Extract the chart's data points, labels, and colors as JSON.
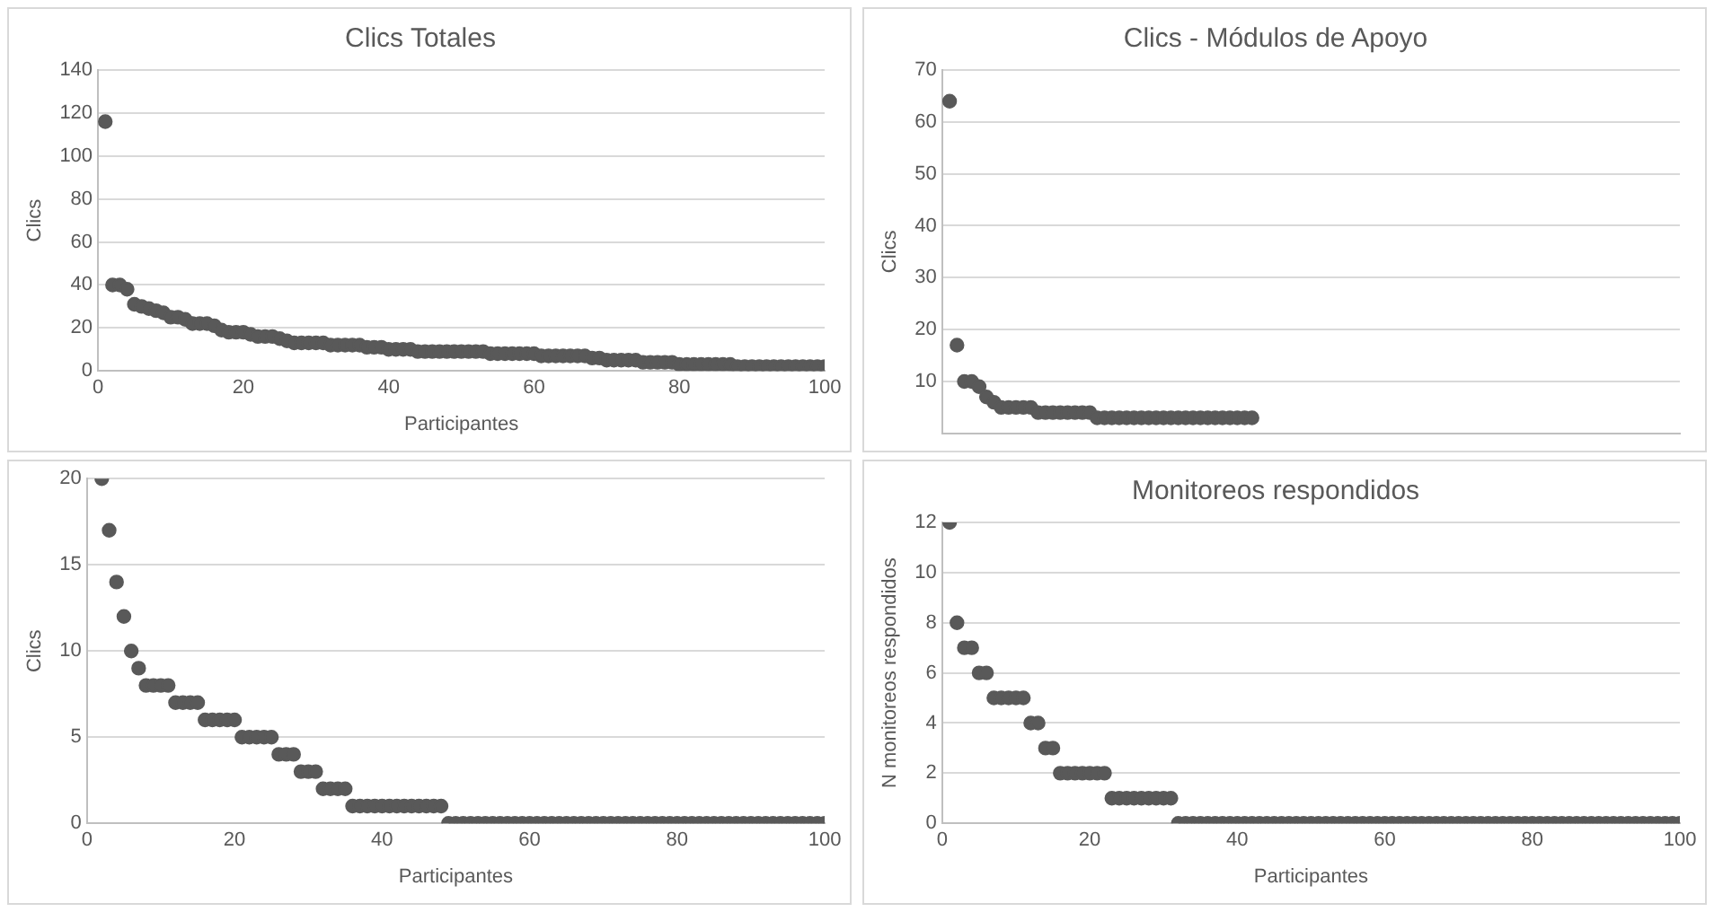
{
  "chart_data": [
    {
      "type": "scatter",
      "title": "Clics Totales",
      "xlabel": "Participantes",
      "ylabel": "Clics",
      "color": "#595959",
      "marker": "circle",
      "grid": "y",
      "xlim": [
        0,
        100
      ],
      "ylim": [
        0,
        140
      ],
      "xticks": [
        0,
        20,
        40,
        60,
        80,
        100
      ],
      "yticks": [
        0,
        20,
        40,
        60,
        80,
        100,
        120,
        140
      ],
      "x": [
        1,
        2,
        3,
        4,
        5,
        6,
        7,
        8,
        9,
        10,
        11,
        12,
        13,
        14,
        15,
        16,
        17,
        18,
        19,
        20,
        21,
        22,
        23,
        24,
        25,
        26,
        27,
        28,
        29,
        30,
        31,
        32,
        33,
        34,
        35,
        36,
        37,
        38,
        39,
        40,
        41,
        42,
        43,
        44,
        45,
        46,
        47,
        48,
        49,
        50,
        51,
        52,
        53,
        54,
        55,
        56,
        57,
        58,
        59,
        60,
        61,
        62,
        63,
        64,
        65,
        66,
        67,
        68,
        69,
        70,
        71,
        72,
        73,
        74,
        75,
        76,
        77,
        78,
        79,
        80,
        81,
        82,
        83,
        84,
        85,
        86,
        87,
        88,
        89,
        90,
        91,
        92,
        93,
        94,
        95,
        96,
        97,
        98,
        99,
        100
      ],
      "values": [
        116,
        40,
        40,
        38,
        31,
        30,
        29,
        28,
        27,
        25,
        25,
        24,
        22,
        22,
        22,
        21,
        19,
        18,
        18,
        18,
        17,
        16,
        16,
        16,
        15,
        14,
        13,
        13,
        13,
        13,
        13,
        12,
        12,
        12,
        12,
        12,
        11,
        11,
        11,
        10,
        10,
        10,
        10,
        9,
        9,
        9,
        9,
        9,
        9,
        9,
        9,
        9,
        9,
        8,
        8,
        8,
        8,
        8,
        8,
        8,
        7,
        7,
        7,
        7,
        7,
        7,
        7,
        6,
        6,
        5,
        5,
        5,
        5,
        5,
        4,
        4,
        4,
        4,
        4,
        3,
        3,
        3,
        3,
        3,
        3,
        3,
        3,
        2,
        2,
        2,
        2,
        2,
        2,
        2,
        2,
        2,
        2,
        2,
        2,
        2
      ]
    },
    {
      "type": "scatter",
      "title": "Clics - Módulos de Apoyo",
      "ylabel": "Clics",
      "color": "#595959",
      "marker": "circle",
      "grid": "y",
      "tick_labels": "y",
      "xlim": [
        0,
        100
      ],
      "ylim": [
        0,
        70
      ],
      "yticks": [
        10,
        20,
        30,
        40,
        50,
        60,
        70
      ],
      "x": [
        1,
        2,
        3,
        4,
        5,
        6,
        7,
        8,
        9,
        10,
        11,
        12,
        13,
        14,
        15,
        16,
        17,
        18,
        19,
        20,
        21,
        22,
        23,
        24,
        25,
        26,
        27,
        28,
        29,
        30,
        31,
        32,
        33,
        34,
        35,
        36,
        37,
        38,
        39,
        40,
        41,
        42
      ],
      "values": [
        64,
        17,
        10,
        10,
        9,
        7,
        6,
        5,
        5,
        5,
        5,
        5,
        4,
        4,
        4,
        4,
        4,
        4,
        4,
        4,
        3,
        3,
        3,
        3,
        3,
        3,
        3,
        3,
        3,
        3,
        3,
        3,
        3,
        3,
        3,
        3,
        3,
        3,
        3,
        3,
        3,
        3
      ]
    },
    {
      "type": "scatter",
      "xlabel": "Participantes",
      "ylabel": "Clics",
      "color": "#595959",
      "marker": "circle",
      "grid": "y",
      "xlim": [
        0,
        100
      ],
      "ylim": [
        0,
        20
      ],
      "xticks": [
        0,
        20,
        40,
        60,
        80,
        100
      ],
      "yticks": [
        0,
        5,
        10,
        15,
        20
      ],
      "x": [
        2,
        3,
        4,
        5,
        6,
        7,
        8,
        9,
        10,
        11,
        12,
        13,
        14,
        15,
        16,
        17,
        18,
        19,
        20,
        21,
        22,
        23,
        24,
        25,
        26,
        27,
        28,
        29,
        30,
        31,
        32,
        33,
        34,
        35,
        36,
        37,
        38,
        39,
        40,
        41,
        42,
        43,
        44,
        45,
        46,
        47,
        48,
        49,
        50,
        51,
        52,
        53,
        54,
        55,
        56,
        57,
        58,
        59,
        60,
        61,
        62,
        63,
        64,
        65,
        66,
        67,
        68,
        69,
        70,
        71,
        72,
        73,
        74,
        75,
        76,
        77,
        78,
        79,
        80,
        81,
        82,
        83,
        84,
        85,
        86,
        87,
        88,
        89,
        90,
        91,
        92,
        93,
        94,
        95,
        96,
        97,
        98,
        99,
        100
      ],
      "values": [
        20,
        17,
        14,
        12,
        10,
        9,
        8,
        8,
        8,
        8,
        7,
        7,
        7,
        7,
        6,
        6,
        6,
        6,
        6,
        5,
        5,
        5,
        5,
        5,
        4,
        4,
        4,
        3,
        3,
        3,
        2,
        2,
        2,
        2,
        1,
        1,
        1,
        1,
        1,
        1,
        1,
        1,
        1,
        1,
        1,
        1,
        1,
        0,
        0,
        0,
        0,
        0,
        0,
        0,
        0,
        0,
        0,
        0,
        0,
        0,
        0,
        0,
        0,
        0,
        0,
        0,
        0,
        0,
        0,
        0,
        0,
        0,
        0,
        0,
        0,
        0,
        0,
        0,
        0,
        0,
        0,
        0,
        0,
        0,
        0,
        0,
        0,
        0,
        0,
        0,
        0,
        0,
        0,
        0,
        0,
        0,
        0,
        0,
        0
      ]
    },
    {
      "type": "scatter",
      "title": "Monitoreos respondidos",
      "xlabel": "Participantes",
      "ylabel": "N monitoreos respondidos",
      "color": "#595959",
      "marker": "circle",
      "grid": "y",
      "xlim": [
        0,
        100
      ],
      "ylim": [
        0,
        12
      ],
      "xticks": [
        0,
        20,
        40,
        60,
        80,
        100
      ],
      "yticks": [
        0,
        2,
        4,
        6,
        8,
        10,
        12
      ],
      "x": [
        1,
        2,
        3,
        4,
        5,
        6,
        7,
        8,
        9,
        10,
        11,
        12,
        13,
        14,
        15,
        16,
        17,
        18,
        19,
        20,
        21,
        22,
        23,
        24,
        25,
        26,
        27,
        28,
        29,
        30,
        31,
        32,
        33,
        34,
        35,
        36,
        37,
        38,
        39,
        40,
        41,
        42,
        43,
        44,
        45,
        46,
        47,
        48,
        49,
        50,
        51,
        52,
        53,
        54,
        55,
        56,
        57,
        58,
        59,
        60,
        61,
        62,
        63,
        64,
        65,
        66,
        67,
        68,
        69,
        70,
        71,
        72,
        73,
        74,
        75,
        76,
        77,
        78,
        79,
        80,
        81,
        82,
        83,
        84,
        85,
        86,
        87,
        88,
        89,
        90,
        91,
        92,
        93,
        94,
        95,
        96,
        97,
        98,
        99,
        100
      ],
      "values": [
        12,
        8,
        7,
        7,
        6,
        6,
        5,
        5,
        5,
        5,
        5,
        4,
        4,
        3,
        3,
        2,
        2,
        2,
        2,
        2,
        2,
        2,
        1,
        1,
        1,
        1,
        1,
        1,
        1,
        1,
        1,
        0,
        0,
        0,
        0,
        0,
        0,
        0,
        0,
        0,
        0,
        0,
        0,
        0,
        0,
        0,
        0,
        0,
        0,
        0,
        0,
        0,
        0,
        0,
        0,
        0,
        0,
        0,
        0,
        0,
        0,
        0,
        0,
        0,
        0,
        0,
        0,
        0,
        0,
        0,
        0,
        0,
        0,
        0,
        0,
        0,
        0,
        0,
        0,
        0,
        0,
        0,
        0,
        0,
        0,
        0,
        0,
        0,
        0,
        0,
        0,
        0,
        0,
        0,
        0,
        0,
        0,
        0,
        0,
        0
      ]
    }
  ]
}
